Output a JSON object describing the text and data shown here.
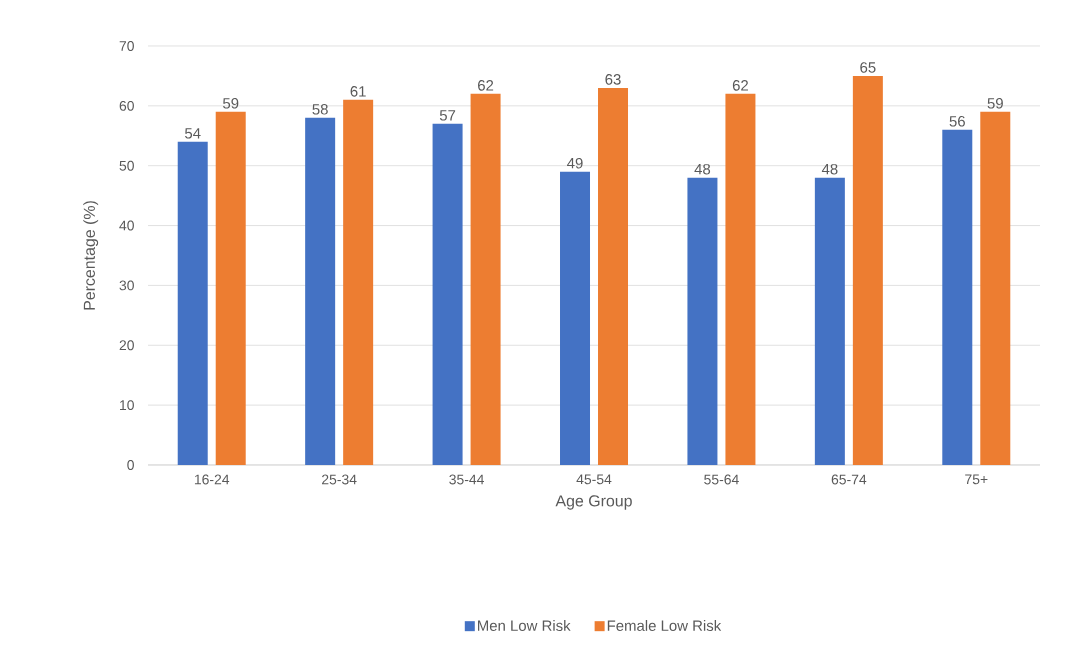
{
  "chart_data": {
    "type": "bar",
    "xlabel": "Age Group",
    "ylabel": "Percentage (%)",
    "categories": [
      "16-24",
      "25-34",
      "35-44",
      "45-54",
      "55-64",
      "65-74",
      "75+"
    ],
    "series": [
      {
        "name": "Men Low Risk",
        "color": "#4472c4",
        "values": [
          54,
          58,
          57,
          49,
          48,
          48,
          56
        ]
      },
      {
        "name": "Female Low Risk",
        "color": "#ed7d31",
        "values": [
          59,
          61,
          62,
          63,
          62,
          65,
          59
        ]
      }
    ],
    "ylim": [
      0,
      70
    ],
    "yticks": [
      0,
      10,
      20,
      30,
      40,
      50,
      60,
      70
    ],
    "grid": "y",
    "legend": "bottom",
    "data_labels": true
  }
}
